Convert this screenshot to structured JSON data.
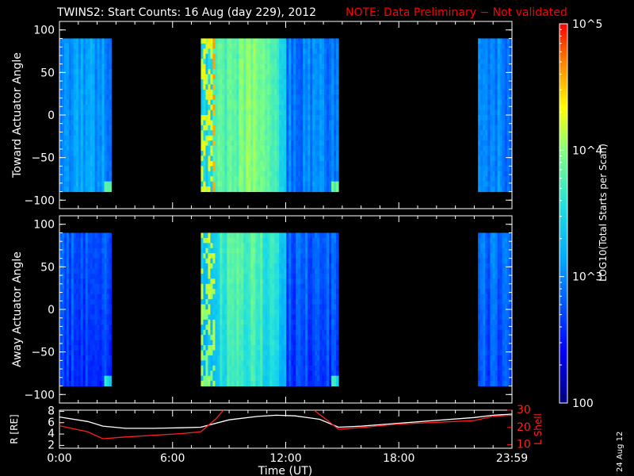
{
  "header": {
    "title": "TWINS2: Start Counts: 16 Aug (day 229), 2012",
    "note": "NOTE: Data Preliminary − Not validated"
  },
  "colorbar": {
    "label": "LOG10(Total Starts per Scan)",
    "tick_labels": [
      "10^5",
      "10^4",
      "10^3",
      "100"
    ],
    "ticks": [
      100000,
      10000,
      1000,
      100
    ]
  },
  "side_date": "24 Aug 12",
  "colors": {
    "note": "#ff0000",
    "r_line": "#ffffff",
    "l_line": "#ff2020",
    "lshell_axis": "#ff2020"
  },
  "chart_data": [
    {
      "type": "heatmap",
      "ylabel": "Toward Actuator Angle",
      "ylim": [
        -110,
        110
      ],
      "yticks": [
        100,
        50,
        0,
        -50,
        -100
      ],
      "xlim": [
        0,
        24
      ],
      "data_angle_range": [
        -90,
        90
      ],
      "segments": [
        {
          "start": 0.0,
          "end": 2.75,
          "base_log": 3.05
        },
        {
          "start": 7.5,
          "end": 14.8,
          "base_log": 3.4
        },
        {
          "start": 22.2,
          "end": 24.0,
          "base_log": 2.95
        }
      ],
      "log_range": [
        2,
        5
      ]
    },
    {
      "type": "heatmap",
      "ylabel": "Away Actuator Angle",
      "ylim": [
        -110,
        110
      ],
      "yticks": [
        100,
        50,
        0,
        -50,
        -100
      ],
      "xlim": [
        0,
        24
      ],
      "data_angle_range": [
        -90,
        90
      ],
      "segments": [
        {
          "start": 0.0,
          "end": 2.75,
          "base_log": 2.8
        },
        {
          "start": 7.5,
          "end": 14.8,
          "base_log": 3.3
        },
        {
          "start": 22.2,
          "end": 24.0,
          "base_log": 2.9
        }
      ],
      "log_range": [
        2,
        5
      ]
    },
    {
      "type": "line",
      "ylabel_left": "R [RE]",
      "ylabel_right": "L Shell",
      "xlabel": "Time (UT)",
      "xticks": [
        0,
        6,
        12,
        18,
        24
      ],
      "xtick_labels": [
        "0:00",
        "6:00",
        "12:00",
        "18:00",
        "23:59"
      ],
      "ylim_left": [
        1.5,
        8.2
      ],
      "yticks_left": [
        2,
        4,
        6,
        8
      ],
      "ylim_right": [
        8,
        30
      ],
      "yticks_right": [
        10,
        20,
        30
      ],
      "series": [
        {
          "name": "R",
          "x": [
            0,
            1.5,
            2.3,
            3.5,
            5,
            6.5,
            7.5,
            9,
            10.5,
            11.5,
            12.5,
            13.8,
            14.8,
            16,
            18,
            20,
            22,
            23,
            24
          ],
          "y": [
            7.0,
            6.2,
            5.4,
            5.0,
            5.0,
            5.1,
            5.2,
            6.5,
            7.1,
            7.3,
            7.2,
            6.6,
            5.2,
            5.4,
            5.9,
            6.4,
            6.9,
            7.3,
            7.5
          ]
        },
        {
          "name": "L Shell",
          "x": [
            0,
            1.5,
            2.3,
            3.5,
            5,
            6.5,
            7.5,
            8.3,
            8.7,
            null,
            13.5,
            14.1,
            14.8,
            16,
            18,
            20,
            22,
            23,
            24
          ],
          "y": [
            21,
            17.5,
            13.5,
            14.5,
            15.5,
            16.5,
            17.5,
            25,
            30,
            null,
            30,
            25,
            19,
            20,
            22,
            23,
            24,
            26.5,
            27
          ]
        }
      ]
    }
  ]
}
